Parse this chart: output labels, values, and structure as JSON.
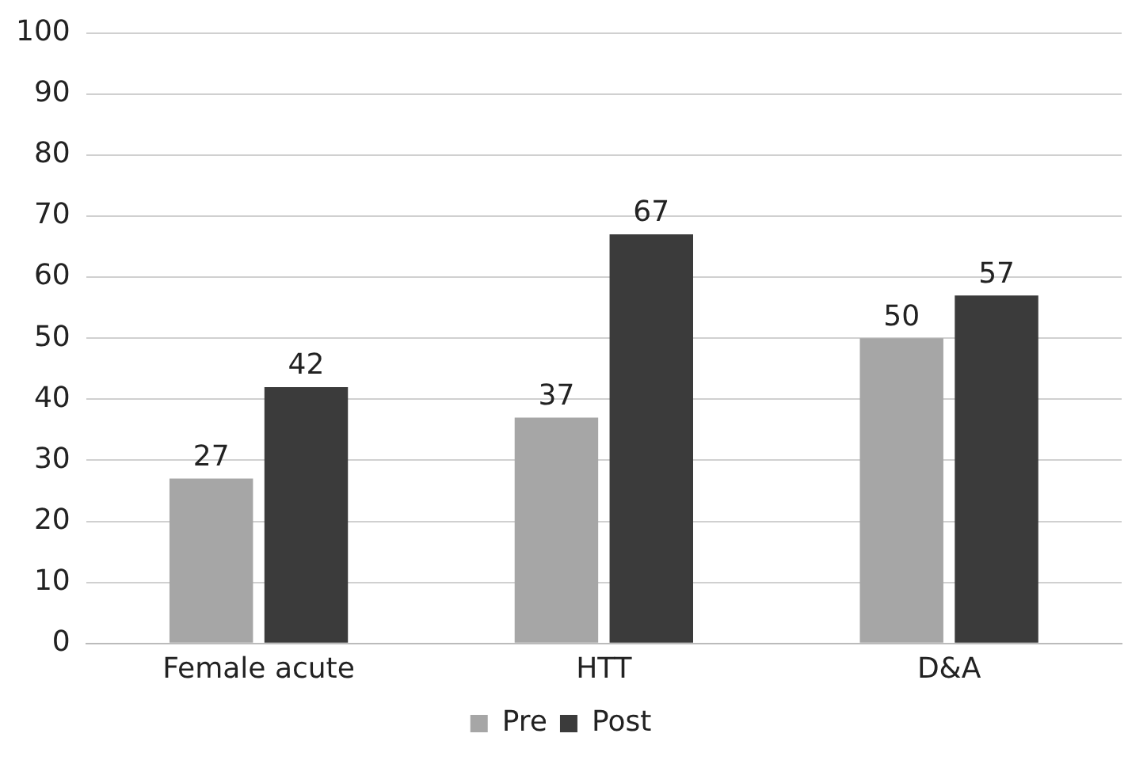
{
  "chart_data": {
    "type": "bar",
    "categories": [
      "Female acute",
      "HTT",
      "D&A"
    ],
    "series": [
      {
        "name": "Pre",
        "color": "#a6a6a6",
        "values": [
          27,
          37,
          50
        ]
      },
      {
        "name": "Post",
        "color": "#3b3b3b",
        "values": [
          42,
          67,
          57
        ]
      }
    ],
    "ylim": [
      0,
      100
    ],
    "yticks": [
      0,
      10,
      20,
      30,
      40,
      50,
      60,
      70,
      80,
      90,
      100
    ],
    "grid": "y",
    "legend": "bottom",
    "data_labels": true
  }
}
